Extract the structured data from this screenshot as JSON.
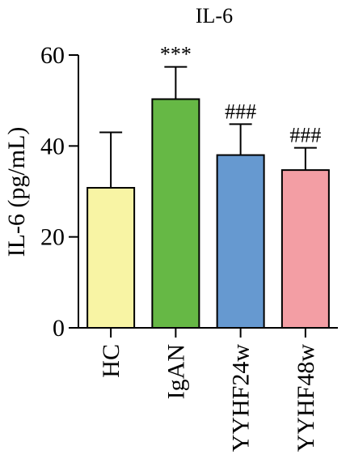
{
  "chart_data": {
    "type": "bar",
    "title": "IL-6",
    "ylabel": "IL-6 (pg/mL)",
    "xlabel": "",
    "ylim": [
      0,
      60
    ],
    "yticks": [
      0,
      20,
      40,
      60
    ],
    "categories": [
      "HC",
      "IgAN",
      "YYHF24w",
      "YYHF48w"
    ],
    "values": [
      30.8,
      50.3,
      38.0,
      34.7
    ],
    "error_upper": [
      12.2,
      7.1,
      6.8,
      4.9
    ],
    "annotations": [
      "",
      "***",
      "###",
      "###"
    ],
    "colors": [
      "#f8f4a4",
      "#66b845",
      "#6699d0",
      "#f39ea4"
    ],
    "grid": false,
    "legend": "none"
  }
}
